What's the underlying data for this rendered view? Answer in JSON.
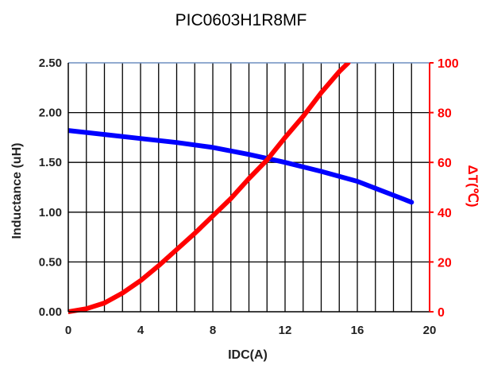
{
  "chart_data": {
    "type": "line",
    "title": "PIC0603H1R8MF",
    "xlabel": "IDC(A)",
    "ylabel_left": "Inductance  (uH)",
    "ylabel_right": "ΔT(℃)",
    "xlim": [
      0,
      20
    ],
    "ylim_left": [
      0,
      2.5
    ],
    "ylim_right": [
      0,
      100
    ],
    "x_ticks": [
      "0",
      "4",
      "8",
      "12",
      "16",
      "20"
    ],
    "y_left_ticks": [
      "0.00",
      "0.50",
      "1.00",
      "1.50",
      "2.00",
      "2.50"
    ],
    "y_right_ticks": [
      "0",
      "20",
      "40",
      "60",
      "80",
      "100"
    ],
    "grid": true,
    "series": [
      {
        "axis": "left",
        "color": "#0000ff",
        "x": [
          0,
          2,
          4,
          6,
          8,
          10,
          12,
          14,
          16,
          17,
          18,
          19
        ],
        "y": [
          1.82,
          1.78,
          1.74,
          1.7,
          1.65,
          1.58,
          1.5,
          1.41,
          1.31,
          1.24,
          1.17,
          1.1
        ]
      },
      {
        "axis": "right",
        "color": "#ff0000",
        "x": [
          0,
          1,
          2,
          3,
          4,
          5,
          6,
          7,
          8,
          9,
          10,
          11,
          12,
          13,
          14,
          15,
          15.5
        ],
        "y": [
          0,
          1.2,
          3.5,
          7.5,
          12.5,
          18.5,
          25,
          31.5,
          38.5,
          45.5,
          53.5,
          61,
          70,
          78.5,
          88,
          96.5,
          100
        ]
      }
    ]
  }
}
